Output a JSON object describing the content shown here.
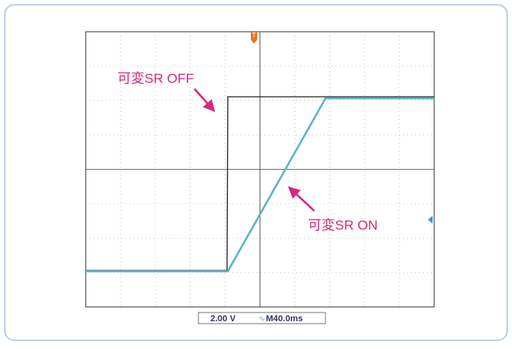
{
  "annotations": {
    "off": "可変SR OFF",
    "on": "可変SR ON"
  },
  "status": {
    "volts": "2.00 V",
    "time": "M40.0ms"
  },
  "trigger": "T"
}
